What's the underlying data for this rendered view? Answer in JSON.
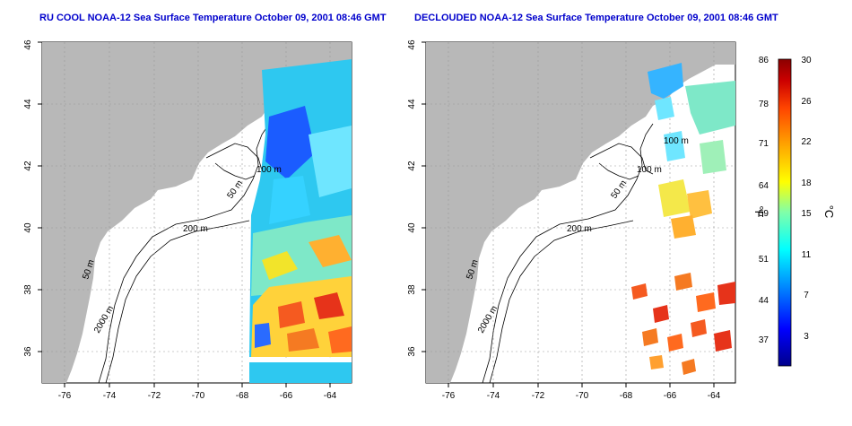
{
  "titles": {
    "left": "RU COOL NOAA-12 Sea Surface Temperature October 09, 2001 08:46 GMT",
    "right": "DECLOUDED NOAA-12 Sea Surface Temperature October 09, 2001 08:46 GMT"
  },
  "axes": {
    "lon_ticks": [
      "-76",
      "-74",
      "-72",
      "-70",
      "-68",
      "-66",
      "-64"
    ],
    "lat_ticks": [
      "36",
      "38",
      "40",
      "42",
      "44",
      "46"
    ]
  },
  "contour_labels": {
    "left": [
      "50 m",
      "2000 m",
      "200 m",
      "50 m",
      "100 m"
    ],
    "right": [
      "50 m",
      "2000 m",
      "200 m",
      "50 m",
      "100 m",
      "100 m"
    ]
  },
  "colorbar": {
    "fahrenheit_ticks": [
      "86",
      "78",
      "71",
      "64",
      "59",
      "51",
      "44",
      "37"
    ],
    "celsius_ticks": [
      "30",
      "26",
      "22",
      "18",
      "15",
      "11",
      "7",
      "3"
    ],
    "fahrenheit_label": "°F",
    "celsius_label": "°C",
    "colors": [
      "#00008b",
      "#0000ff",
      "#0080ff",
      "#00ffff",
      "#7fffaa",
      "#ffff00",
      "#ffa500",
      "#ff4500",
      "#cc0000",
      "#8b0000"
    ]
  },
  "colors": {
    "land": "#b8b8b8",
    "ocean": "#ffffff",
    "grid": "#999999",
    "title": "#0000cc"
  }
}
